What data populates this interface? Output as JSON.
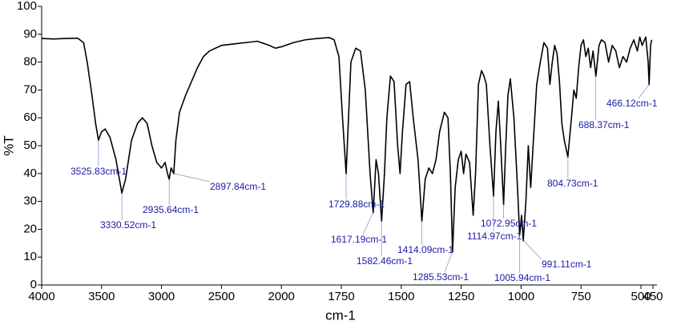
{
  "chart_data": {
    "type": "line",
    "x_label": "cm-1",
    "y_label": "%T",
    "xlim": [
      4000,
      450
    ],
    "x_break": 2000,
    "x_break_stretch": 2,
    "xticks": [
      4000,
      3500,
      3000,
      2500,
      2000,
      1750,
      1500,
      1250,
      1000,
      750,
      500,
      450
    ],
    "ylim": [
      0,
      100
    ],
    "yticks": [
      0,
      10,
      20,
      30,
      40,
      50,
      60,
      70,
      80,
      90,
      100
    ],
    "series": [
      {
        "color": "#000000",
        "x": [
          4000,
          3900,
          3800,
          3700,
          3650,
          3620,
          3580,
          3550,
          3526,
          3500,
          3470,
          3430,
          3380,
          3331,
          3300,
          3250,
          3200,
          3160,
          3120,
          3080,
          3040,
          3000,
          2970,
          2950,
          2936,
          2920,
          2898,
          2880,
          2850,
          2800,
          2750,
          2700,
          2650,
          2600,
          2500,
          2400,
          2300,
          2200,
          2100,
          2050,
          2000,
          1950,
          1900,
          1850,
          1800,
          1780,
          1760,
          1745,
          1730,
          1720,
          1710,
          1690,
          1670,
          1650,
          1630,
          1617,
          1605,
          1595,
          1582,
          1570,
          1560,
          1545,
          1530,
          1515,
          1505,
          1495,
          1480,
          1465,
          1450,
          1430,
          1414,
          1400,
          1385,
          1370,
          1355,
          1340,
          1320,
          1305,
          1295,
          1286,
          1275,
          1262,
          1250,
          1240,
          1230,
          1215,
          1200,
          1190,
          1178,
          1165,
          1155,
          1145,
          1130,
          1115,
          1105,
          1095,
          1085,
          1073,
          1065,
          1055,
          1045,
          1030,
          1015,
          1006,
          998,
          991,
          980,
          970,
          960,
          950,
          935,
          920,
          905,
          890,
          880,
          870,
          860,
          850,
          840,
          830,
          820,
          805,
          790,
          780,
          770,
          760,
          750,
          740,
          730,
          720,
          710,
          700,
          688,
          675,
          665,
          650,
          635,
          620,
          605,
          590,
          575,
          560,
          545,
          530,
          515,
          505,
          495,
          480,
          470,
          466,
          460,
          455
        ],
        "values": [
          88.5,
          88.3,
          88.5,
          88.6,
          87,
          80,
          68,
          58,
          52,
          55,
          56,
          53,
          45,
          33,
          38,
          52,
          58,
          60,
          58,
          50,
          44,
          42,
          44,
          40,
          38,
          42,
          40,
          52,
          62,
          68,
          73,
          78,
          82,
          84,
          86,
          86.5,
          87,
          87.5,
          86,
          85,
          85.5,
          87,
          88,
          88.5,
          88.8,
          88,
          82,
          60,
          40,
          60,
          80,
          85,
          84,
          70,
          40,
          26,
          45,
          40,
          23,
          40,
          60,
          75,
          73,
          50,
          40,
          55,
          72,
          73,
          60,
          45,
          23,
          38,
          42,
          40,
          45,
          55,
          62,
          60,
          40,
          12,
          35,
          45,
          48,
          40,
          47,
          44,
          25,
          40,
          72,
          77,
          75,
          72,
          50,
          32,
          55,
          66,
          50,
          29,
          48,
          68,
          74,
          60,
          35,
          18,
          25,
          16,
          30,
          50,
          35,
          50,
          72,
          80,
          87,
          85,
          72,
          80,
          86,
          83,
          73,
          58,
          52,
          46,
          60,
          70,
          67,
          78,
          86,
          88,
          82,
          85,
          78,
          84,
          75,
          86,
          88,
          87,
          80,
          86,
          84,
          78,
          82,
          80,
          85,
          88,
          84,
          89,
          86,
          89,
          80,
          72,
          86,
          88
        ]
      }
    ],
    "annotations": [
      {
        "x": 3525.83,
        "y": 52,
        "label": "3525.83cm-1"
      },
      {
        "x": 3330.52,
        "y": 33,
        "label": "3330.52cm-1"
      },
      {
        "x": 2935.64,
        "y": 38,
        "label": "2935.64cm-1"
      },
      {
        "x": 2897.84,
        "y": 40,
        "label": "2897.84cm-1"
      },
      {
        "x": 1729.88,
        "y": 40,
        "label": "1729.88cm-1"
      },
      {
        "x": 1617.19,
        "y": 26,
        "label": "1617.19cm-1"
      },
      {
        "x": 1582.46,
        "y": 23,
        "label": "1582.46cm-1"
      },
      {
        "x": 1414.09,
        "y": 23,
        "label": "1414.09cm-1"
      },
      {
        "x": 1285.53,
        "y": 12,
        "label": "1285.53cm-1"
      },
      {
        "x": 1072.95,
        "y": 29,
        "label": "1072.95cm-1"
      },
      {
        "x": 1114.97,
        "y": 32,
        "label": "1114.97cm-1"
      },
      {
        "x": 991.11,
        "y": 16,
        "label": "991.11cm-1"
      },
      {
        "x": 1005.94,
        "y": 18,
        "label": "1005.94cm-1"
      },
      {
        "x": 804.73,
        "y": 46,
        "label": "804.73cm-1"
      },
      {
        "x": 688.37,
        "y": 75,
        "label": "688.37cm-1"
      },
      {
        "x": 466.12,
        "y": 72,
        "label": "466.12cm-1"
      }
    ]
  }
}
